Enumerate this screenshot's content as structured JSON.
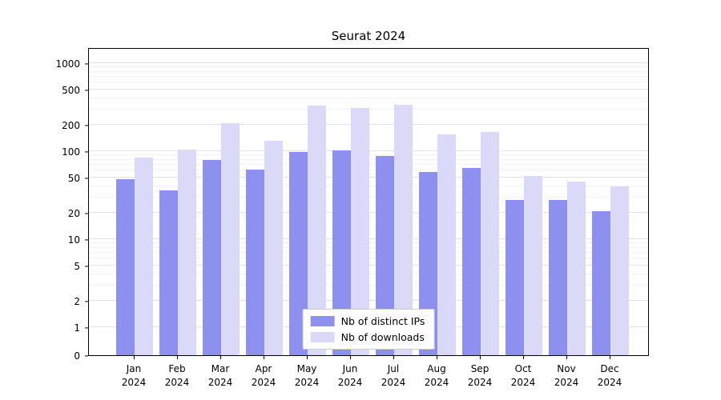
{
  "title": "Seurat 2024",
  "chart_data": {
    "type": "bar",
    "title": "Seurat 2024",
    "yscale": "symlog",
    "grid": true,
    "legend_position": "lower center",
    "ylim": [
      0,
      1500
    ],
    "y_ticks": [
      0,
      1,
      2,
      5,
      10,
      20,
      50,
      100,
      200,
      500,
      1000
    ],
    "categories": [
      "Jan 2024",
      "Feb 2024",
      "Mar 2024",
      "Apr 2024",
      "May 2024",
      "Jun 2024",
      "Jul 2024",
      "Aug 2024",
      "Sep 2024",
      "Oct 2024",
      "Nov 2024",
      "Dec 2024"
    ],
    "series": [
      {
        "name": "Nb of distinct IPs",
        "color": "#8d90ee",
        "values": [
          48,
          36,
          80,
          62,
          97,
          102,
          88,
          58,
          65,
          28,
          28,
          21
        ]
      },
      {
        "name": "Nb of downloads",
        "color": "#dadaf8",
        "values": [
          85,
          105,
          210,
          130,
          330,
          310,
          340,
          155,
          165,
          52,
          45,
          40
        ]
      }
    ]
  }
}
